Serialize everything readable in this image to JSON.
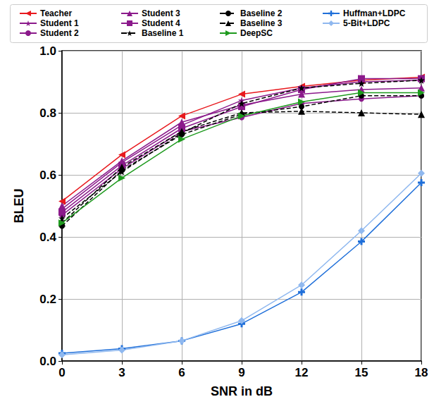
{
  "chart_data": {
    "type": "line",
    "x_label": "SNR in dB",
    "y_label": "BLEU",
    "x": [
      0,
      3,
      6,
      9,
      12,
      15,
      18
    ],
    "xlim": [
      0,
      18
    ],
    "xticks": [
      0,
      3,
      6,
      9,
      12,
      15,
      18
    ],
    "ylim": [
      0,
      1
    ],
    "yticks": [
      {
        "value": 0,
        "label": "0.0"
      },
      {
        "value": 0.2,
        "label": "0.2"
      },
      {
        "value": 0.4,
        "label": "0.4"
      },
      {
        "value": 0.6,
        "label": "0.6"
      },
      {
        "value": 0.8,
        "label": "0.8"
      },
      {
        "value": 1,
        "label": "1.0"
      }
    ],
    "grid": true,
    "legend": "top",
    "series": [
      {
        "name": "Teacher",
        "color": "#e8191e",
        "marker": "triangle-left",
        "line_style": "solid",
        "values": [
          0.515,
          0.665,
          0.79,
          0.86,
          0.885,
          0.905,
          0.915
        ]
      },
      {
        "name": "Student 1",
        "color": "#8b1a8b",
        "marker": "star",
        "line_style": "solid",
        "values": [
          0.49,
          0.64,
          0.76,
          0.84,
          0.88,
          0.9,
          0.905
        ]
      },
      {
        "name": "Student 2",
        "color": "#8b1a8b",
        "marker": "circle",
        "line_style": "solid",
        "values": [
          0.47,
          0.62,
          0.74,
          0.785,
          0.83,
          0.845,
          0.855
        ]
      },
      {
        "name": "Student 3",
        "color": "#8b1a8b",
        "marker": "triangle",
        "line_style": "solid",
        "values": [
          0.5,
          0.645,
          0.77,
          0.825,
          0.86,
          0.875,
          0.88
        ]
      },
      {
        "name": "Student 4",
        "color": "#8b1a8b",
        "marker": "square",
        "line_style": "solid",
        "values": [
          0.48,
          0.63,
          0.75,
          0.82,
          0.875,
          0.91,
          0.91
        ]
      },
      {
        "name": "Baseline 1",
        "color": "#000000",
        "marker": "star",
        "line_style": "dashed",
        "values": [
          0.46,
          0.61,
          0.735,
          0.83,
          0.88,
          0.895,
          0.905
        ]
      },
      {
        "name": "Baseline 2",
        "color": "#000000",
        "marker": "circle",
        "line_style": "dashed",
        "values": [
          0.435,
          0.615,
          0.73,
          0.795,
          0.82,
          0.855,
          0.855
        ]
      },
      {
        "name": "Baseline 3",
        "color": "#000000",
        "marker": "triangle",
        "line_style": "dashed",
        "values": [
          0.445,
          0.625,
          0.74,
          0.8,
          0.805,
          0.8,
          0.795
        ]
      },
      {
        "name": "DeepSC",
        "color": "#1e9a1e",
        "marker": "triangle-right",
        "line_style": "solid",
        "values": [
          0.445,
          0.59,
          0.715,
          0.79,
          0.835,
          0.865,
          0.865
        ]
      },
      {
        "name": "Huffman+LDPC",
        "color": "#1f6fd9",
        "marker": "plus",
        "line_style": "solid",
        "values": [
          0.025,
          0.04,
          0.065,
          0.12,
          0.222,
          0.385,
          0.575
        ]
      },
      {
        "name": "5-Bit+LDPC",
        "color": "#8fb8ef",
        "marker": "diamond",
        "line_style": "solid",
        "values": [
          0.02,
          0.035,
          0.065,
          0.13,
          0.245,
          0.42,
          0.605
        ]
      }
    ]
  }
}
